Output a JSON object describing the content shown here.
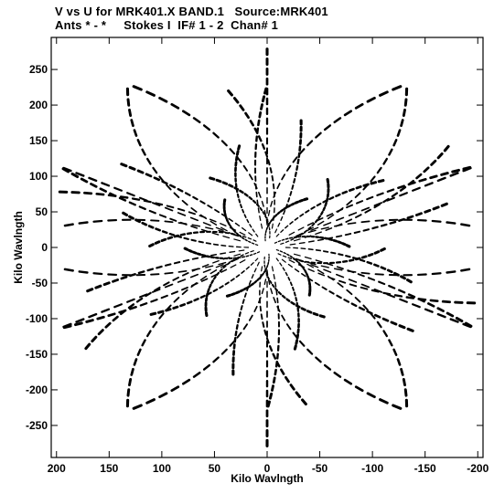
{
  "header": {
    "line1": "V vs U for MRK401.X BAND.1   Source:MRK401",
    "line2": "Ants * - *     Stokes I  IF# 1 - 2  Chan# 1"
  },
  "chart_data": {
    "type": "scatter",
    "title": "V vs U for MRK401.X BAND.1   Source:MRK401",
    "subtitle": "Ants * - *     Stokes I  IF# 1 - 2  Chan# 1",
    "xlabel": "Kilo Wavlngth",
    "ylabel": "Kilo Wavlngth",
    "x_reversed": true,
    "xlim": [
      205,
      -205
    ],
    "ylim": [
      -295,
      295
    ],
    "xticks": [
      200,
      150,
      100,
      50,
      0,
      -50,
      -100,
      -150,
      -200
    ],
    "xtick_labels": [
      "200",
      "150",
      "100",
      "50",
      "0",
      "-50",
      "-100",
      "-150",
      "-200"
    ],
    "yticks": [
      250,
      200,
      150,
      100,
      50,
      0,
      -50,
      -100,
      -150,
      -200,
      -250
    ],
    "ytick_labels": [
      "250",
      "200",
      "150",
      "100",
      "50",
      "0",
      "-50",
      "-100",
      "-150",
      "-200",
      "-250"
    ],
    "baselines": [
      {
        "radius_frac": 1.0,
        "base_angle_deg": 90,
        "tilt_deg": 0
      },
      {
        "radius_frac": 0.93,
        "base_angle_deg": 150,
        "tilt_deg": -30
      },
      {
        "radius_frac": 0.93,
        "base_angle_deg": 30,
        "tilt_deg": 30
      },
      {
        "radius_frac": 0.8,
        "base_angle_deg": 100,
        "tilt_deg": -10
      },
      {
        "radius_frac": 0.8,
        "base_angle_deg": 140,
        "tilt_deg": 20
      },
      {
        "radius_frac": 0.65,
        "base_angle_deg": 70,
        "tilt_deg": 10
      },
      {
        "radius_frac": 0.52,
        "base_angle_deg": 120,
        "tilt_deg": -20
      },
      {
        "radius_frac": 0.4,
        "base_angle_deg": 20,
        "tilt_deg": 40
      },
      {
        "radius_frac": 0.28,
        "base_angle_deg": 160,
        "tilt_deg": -40
      }
    ],
    "color": "#000000",
    "grid": false,
    "legend": "none"
  }
}
